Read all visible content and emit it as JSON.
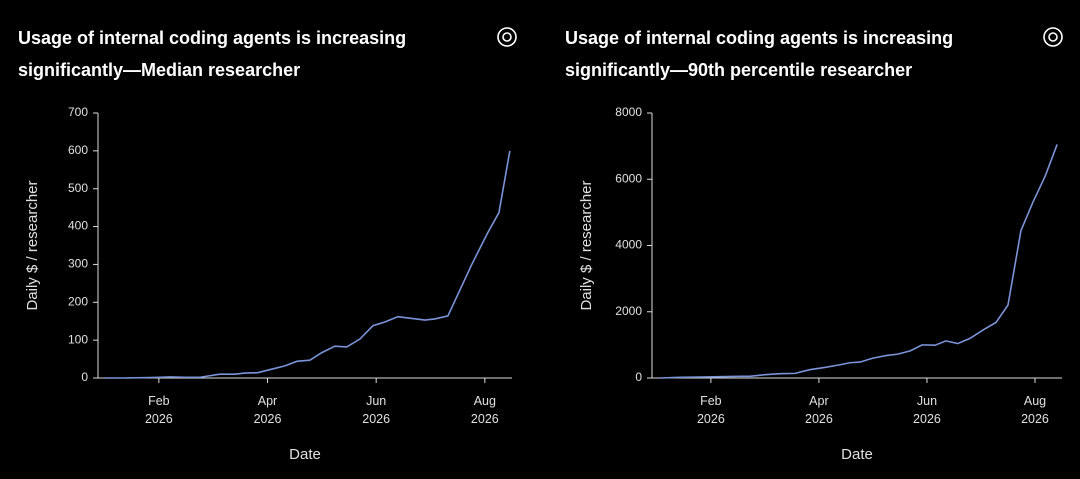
{
  "chart_data": [
    {
      "type": "line",
      "title": "Usage of internal coding agents is increasing significantly—Median researcher",
      "xlabel": "Date",
      "ylabel": "Daily $ / researcher",
      "x": [
        1.01,
        1.37,
        1.74,
        2.02,
        2.2,
        2.48,
        2.76,
        3.12,
        3.4,
        3.58,
        3.82,
        4.04,
        4.32,
        4.54,
        4.78,
        5.0,
        5.24,
        5.46,
        5.7,
        5.94,
        6.16,
        6.4,
        6.62,
        6.9,
        7.08,
        7.32,
        7.76,
        8.04,
        8.26,
        8.46
      ],
      "series": [
        {
          "name": "Median researcher",
          "color": "#7b93d8",
          "values": [
            0,
            0,
            1,
            2,
            3,
            2,
            2,
            10,
            10,
            13,
            14,
            22,
            32,
            44,
            47,
            67,
            84,
            82,
            103,
            138,
            148,
            162,
            158,
            153,
            156,
            164,
            300,
            380,
            437,
            600
          ]
        }
      ],
      "xlim": [
        0.88,
        8.5
      ],
      "xticks": [
        {
          "value": 2,
          "label": "Feb\n2026"
        },
        {
          "value": 4,
          "label": "Apr\n2026"
        },
        {
          "value": 6,
          "label": "Jun\n2026"
        },
        {
          "value": 8,
          "label": "Aug\n2026"
        }
      ],
      "ylim": [
        0,
        700
      ],
      "yticks": [
        0,
        100,
        200,
        300,
        400,
        500,
        600,
        700
      ]
    },
    {
      "type": "line",
      "title": "Usage of internal coding agents is increasing significantly—90th percentile researcher",
      "xlabel": "Date",
      "ylabel": "Daily $ / researcher",
      "x": [
        1.06,
        1.43,
        1.8,
        2.17,
        2.54,
        2.72,
        3.0,
        3.28,
        3.56,
        3.83,
        4.11,
        4.39,
        4.57,
        4.76,
        5.0,
        5.26,
        5.46,
        5.69,
        5.91,
        6.15,
        6.35,
        6.57,
        6.8,
        7.04,
        7.28,
        7.5,
        7.74,
        7.96,
        8.19,
        8.41
      ],
      "series": [
        {
          "name": "90th percentile researcher",
          "color": "#7b93d8",
          "values": [
            0,
            20,
            30,
            40,
            50,
            50,
            100,
            130,
            140,
            250,
            320,
            400,
            460,
            480,
            600,
            680,
            720,
            820,
            1000,
            990,
            1120,
            1040,
            1200,
            1450,
            1680,
            2200,
            4450,
            5300,
            6100,
            7050
          ]
        }
      ],
      "xlim": [
        0.91,
        8.5
      ],
      "xticks": [
        {
          "value": 2,
          "label": "Feb\n2026"
        },
        {
          "value": 4,
          "label": "Apr\n2026"
        },
        {
          "value": 6,
          "label": "Jun\n2026"
        },
        {
          "value": 8,
          "label": "Aug\n2026"
        }
      ],
      "ylim": [
        0,
        8000
      ],
      "yticks": [
        0,
        2000,
        4000,
        6000,
        8000
      ]
    }
  ]
}
